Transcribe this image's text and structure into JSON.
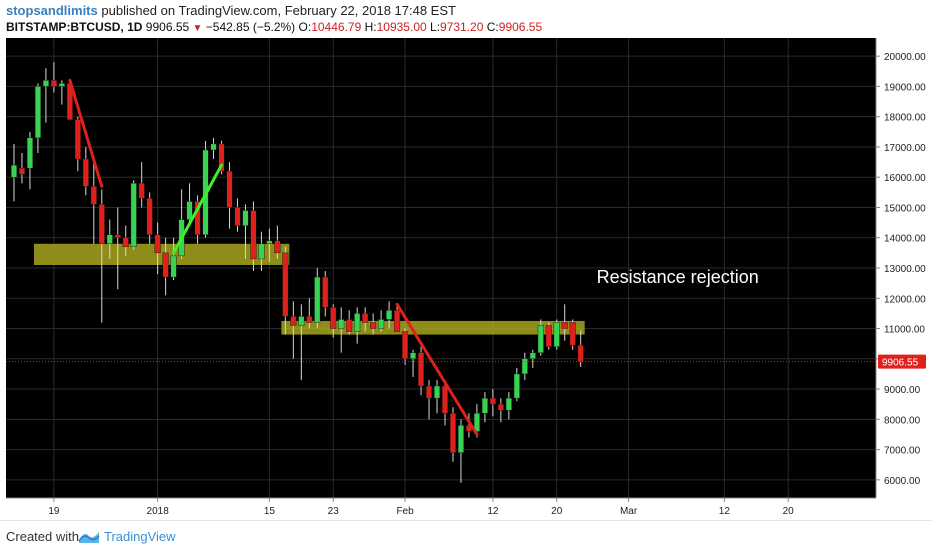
{
  "header": {
    "author": "stopsandlimits",
    "published_text": "published on TradingView.com, February 22, 2018 17:48 EST",
    "symbol": "BITSTAMP:BTCUSD, 1D",
    "last_price": "9906.55",
    "change_arrow": "▼",
    "change": "−542.85 (−5.2%)",
    "open_label": "O:",
    "open_value": "10446.79",
    "high_label": "H:",
    "high_value": "10935.00",
    "low_label": "L:",
    "low_value": "9731.20",
    "close_label": "C:",
    "close_value": "9906.55"
  },
  "footer": {
    "created_with": "Created with",
    "brand": "TradingView"
  },
  "colors": {
    "background": "#000000",
    "up": "#39d353",
    "down": "#e0201b",
    "zone": "#a8a61d",
    "trend": "#e0201b",
    "trend_up": "#3ef028",
    "last_price_line": "#e0201b",
    "grid": "#2a2a2a"
  },
  "chart_data": {
    "type": "candlestick",
    "title": "",
    "xlabel": "",
    "ylabel": "",
    "ylim": [
      5400,
      20600
    ],
    "x_range": [
      -19,
      90
    ],
    "y_ticks": [
      "20000.00",
      "19000.00",
      "18000.00",
      "17000.00",
      "16000.00",
      "15000.00",
      "14000.00",
      "13000.00",
      "12000.00",
      "11000.00",
      "10000.00",
      "9000.00",
      "8000.00",
      "7000.00",
      "6000.00"
    ],
    "x_ticks": [
      {
        "label": "19",
        "day": -13
      },
      {
        "label": "2018",
        "day": 0
      },
      {
        "label": "15",
        "day": 14
      },
      {
        "label": "23",
        "day": 22
      },
      {
        "label": "Feb",
        "day": 31
      },
      {
        "label": "12",
        "day": 42
      },
      {
        "label": "20",
        "day": 50
      },
      {
        "label": "Mar",
        "day": 59
      },
      {
        "label": "12",
        "day": 71
      },
      {
        "label": "20",
        "day": 79
      }
    ],
    "x_unit": "days since 2018-01-01",
    "candles": [
      {
        "d": -18,
        "o": 16000,
        "h": 17100,
        "l": 15200,
        "c": 16400
      },
      {
        "d": -17,
        "o": 16300,
        "h": 16800,
        "l": 15800,
        "c": 16100
      },
      {
        "d": -16,
        "o": 16300,
        "h": 17500,
        "l": 15600,
        "c": 17300
      },
      {
        "d": -15,
        "o": 17300,
        "h": 19100,
        "l": 16800,
        "c": 19000
      },
      {
        "d": -14,
        "o": 19000,
        "h": 19600,
        "l": 17800,
        "c": 19200
      },
      {
        "d": -13,
        "o": 19200,
        "h": 19800,
        "l": 18800,
        "c": 19000
      },
      {
        "d": -12,
        "o": 19000,
        "h": 19200,
        "l": 18400,
        "c": 19100
      },
      {
        "d": -11,
        "o": 19100,
        "h": 19200,
        "l": 17900,
        "c": 17900
      },
      {
        "d": -10,
        "o": 17900,
        "h": 18000,
        "l": 16200,
        "c": 16600
      },
      {
        "d": -9,
        "o": 16600,
        "h": 17000,
        "l": 15400,
        "c": 15700
      },
      {
        "d": -8,
        "o": 15700,
        "h": 16600,
        "l": 13800,
        "c": 15100
      },
      {
        "d": -7,
        "o": 15100,
        "h": 15600,
        "l": 11200,
        "c": 13800
      },
      {
        "d": -6,
        "o": 13800,
        "h": 14600,
        "l": 13300,
        "c": 14100
      },
      {
        "d": -5,
        "o": 14100,
        "h": 15000,
        "l": 12300,
        "c": 14000
      },
      {
        "d": -4,
        "o": 14000,
        "h": 14400,
        "l": 13400,
        "c": 13700
      },
      {
        "d": -3,
        "o": 13700,
        "h": 15900,
        "l": 13600,
        "c": 15800
      },
      {
        "d": -2,
        "o": 15800,
        "h": 16500,
        "l": 15000,
        "c": 15300
      },
      {
        "d": -1,
        "o": 15300,
        "h": 15500,
        "l": 13800,
        "c": 14100
      },
      {
        "d": 0,
        "o": 14100,
        "h": 14500,
        "l": 12800,
        "c": 13500
      },
      {
        "d": 1,
        "o": 13500,
        "h": 14000,
        "l": 12100,
        "c": 12700
      },
      {
        "d": 2,
        "o": 12700,
        "h": 14000,
        "l": 12600,
        "c": 13400
      },
      {
        "d": 3,
        "o": 13400,
        "h": 15600,
        "l": 13300,
        "c": 14600
      },
      {
        "d": 4,
        "o": 14600,
        "h": 15800,
        "l": 14500,
        "c": 15200
      },
      {
        "d": 5,
        "o": 15200,
        "h": 15400,
        "l": 13800,
        "c": 14100
      },
      {
        "d": 6,
        "o": 14100,
        "h": 17200,
        "l": 14000,
        "c": 16900
      },
      {
        "d": 7,
        "o": 16900,
        "h": 17300,
        "l": 16600,
        "c": 17100
      },
      {
        "d": 8,
        "o": 17100,
        "h": 17200,
        "l": 16100,
        "c": 16200
      },
      {
        "d": 9,
        "o": 16200,
        "h": 16500,
        "l": 14300,
        "c": 15000
      },
      {
        "d": 10,
        "o": 15000,
        "h": 15300,
        "l": 14200,
        "c": 14400
      },
      {
        "d": 11,
        "o": 14400,
        "h": 15100,
        "l": 13300,
        "c": 14900
      },
      {
        "d": 12,
        "o": 14900,
        "h": 15200,
        "l": 12900,
        "c": 13300
      },
      {
        "d": 13,
        "o": 13300,
        "h": 14200,
        "l": 12900,
        "c": 13800
      },
      {
        "d": 14,
        "o": 13800,
        "h": 14300,
        "l": 13200,
        "c": 13900
      },
      {
        "d": 15,
        "o": 13900,
        "h": 14400,
        "l": 13300,
        "c": 13500
      },
      {
        "d": 16,
        "o": 13500,
        "h": 13700,
        "l": 10800,
        "c": 11400
      },
      {
        "d": 17,
        "o": 11400,
        "h": 11900,
        "l": 10000,
        "c": 11100
      },
      {
        "d": 18,
        "o": 11100,
        "h": 11800,
        "l": 9300,
        "c": 11400
      },
      {
        "d": 19,
        "o": 11400,
        "h": 12000,
        "l": 11000,
        "c": 11200
      },
      {
        "d": 20,
        "o": 11200,
        "h": 13000,
        "l": 11000,
        "c": 12700
      },
      {
        "d": 21,
        "o": 12700,
        "h": 12900,
        "l": 11400,
        "c": 11700
      },
      {
        "d": 22,
        "o": 11700,
        "h": 11800,
        "l": 10700,
        "c": 11000
      },
      {
        "d": 23,
        "o": 11000,
        "h": 11700,
        "l": 10200,
        "c": 11300
      },
      {
        "d": 24,
        "o": 11300,
        "h": 11600,
        "l": 10800,
        "c": 10900
      },
      {
        "d": 25,
        "o": 10900,
        "h": 11700,
        "l": 10500,
        "c": 11500
      },
      {
        "d": 26,
        "o": 11500,
        "h": 11700,
        "l": 10900,
        "c": 11200
      },
      {
        "d": 27,
        "o": 11200,
        "h": 11500,
        "l": 10800,
        "c": 11000
      },
      {
        "d": 28,
        "o": 11000,
        "h": 11600,
        "l": 10900,
        "c": 11300
      },
      {
        "d": 29,
        "o": 11300,
        "h": 11900,
        "l": 11000,
        "c": 11600
      },
      {
        "d": 30,
        "o": 11600,
        "h": 11800,
        "l": 10900,
        "c": 10900
      },
      {
        "d": 31,
        "o": 10900,
        "h": 11000,
        "l": 9800,
        "c": 10000
      },
      {
        "d": 32,
        "o": 10000,
        "h": 10300,
        "l": 9400,
        "c": 10200
      },
      {
        "d": 33,
        "o": 10200,
        "h": 10400,
        "l": 8800,
        "c": 9100
      },
      {
        "d": 34,
        "o": 9100,
        "h": 9300,
        "l": 8000,
        "c": 8700
      },
      {
        "d": 35,
        "o": 8700,
        "h": 9300,
        "l": 8200,
        "c": 9100
      },
      {
        "d": 36,
        "o": 9100,
        "h": 9300,
        "l": 7800,
        "c": 8200
      },
      {
        "d": 37,
        "o": 8200,
        "h": 8400,
        "l": 6600,
        "c": 6900
      },
      {
        "d": 38,
        "o": 6900,
        "h": 8000,
        "l": 5900,
        "c": 7800
      },
      {
        "d": 39,
        "o": 7800,
        "h": 8200,
        "l": 7400,
        "c": 7600
      },
      {
        "d": 40,
        "o": 7600,
        "h": 8500,
        "l": 7400,
        "c": 8200
      },
      {
        "d": 41,
        "o": 8200,
        "h": 8900,
        "l": 7900,
        "c": 8700
      },
      {
        "d": 42,
        "o": 8700,
        "h": 9000,
        "l": 8100,
        "c": 8500
      },
      {
        "d": 43,
        "o": 8500,
        "h": 8700,
        "l": 7900,
        "c": 8300
      },
      {
        "d": 44,
        "o": 8300,
        "h": 8900,
        "l": 8000,
        "c": 8700
      },
      {
        "d": 45,
        "o": 8700,
        "h": 9700,
        "l": 8600,
        "c": 9500
      },
      {
        "d": 46,
        "o": 9500,
        "h": 10200,
        "l": 9300,
        "c": 10000
      },
      {
        "d": 47,
        "o": 10000,
        "h": 10300,
        "l": 9700,
        "c": 10200
      },
      {
        "d": 48,
        "o": 10200,
        "h": 11300,
        "l": 10100,
        "c": 11100
      },
      {
        "d": 49,
        "o": 11100,
        "h": 11200,
        "l": 10300,
        "c": 10400
      },
      {
        "d": 50,
        "o": 10400,
        "h": 11300,
        "l": 10300,
        "c": 11200
      },
      {
        "d": 51,
        "o": 11200,
        "h": 11800,
        "l": 10600,
        "c": 11000
      },
      {
        "d": 52,
        "o": 11200,
        "h": 11300,
        "l": 10300,
        "c": 10450
      },
      {
        "d": 53,
        "o": 10446.79,
        "h": 10935,
        "l": 9731.2,
        "c": 9906.55
      }
    ],
    "zones": [
      {
        "name": "support-zone",
        "d0": -15,
        "d1": 16,
        "low": 13100,
        "high": 13800
      },
      {
        "name": "resistance-zone",
        "d0": 16,
        "d1": 53,
        "low": 10800,
        "high": 11250
      }
    ],
    "trendlines": [
      {
        "name": "trendline-down-1",
        "color": "down",
        "p0": {
          "d": -11,
          "v": 19200
        },
        "p1": {
          "d": -7,
          "v": 15700
        }
      },
      {
        "name": "trendline-up",
        "color": "up",
        "p0": {
          "d": 2,
          "v": 13500
        },
        "p1": {
          "d": 8,
          "v": 16400
        }
      },
      {
        "name": "trendline-down-2",
        "color": "down",
        "p0": {
          "d": 30,
          "v": 11800
        },
        "p1": {
          "d": 40,
          "v": 7500
        }
      }
    ],
    "annotation": {
      "text": "Resistance rejection",
      "d": 55,
      "v": 12500
    },
    "last_price": 9906.55,
    "last_price_label": "9906.55"
  }
}
